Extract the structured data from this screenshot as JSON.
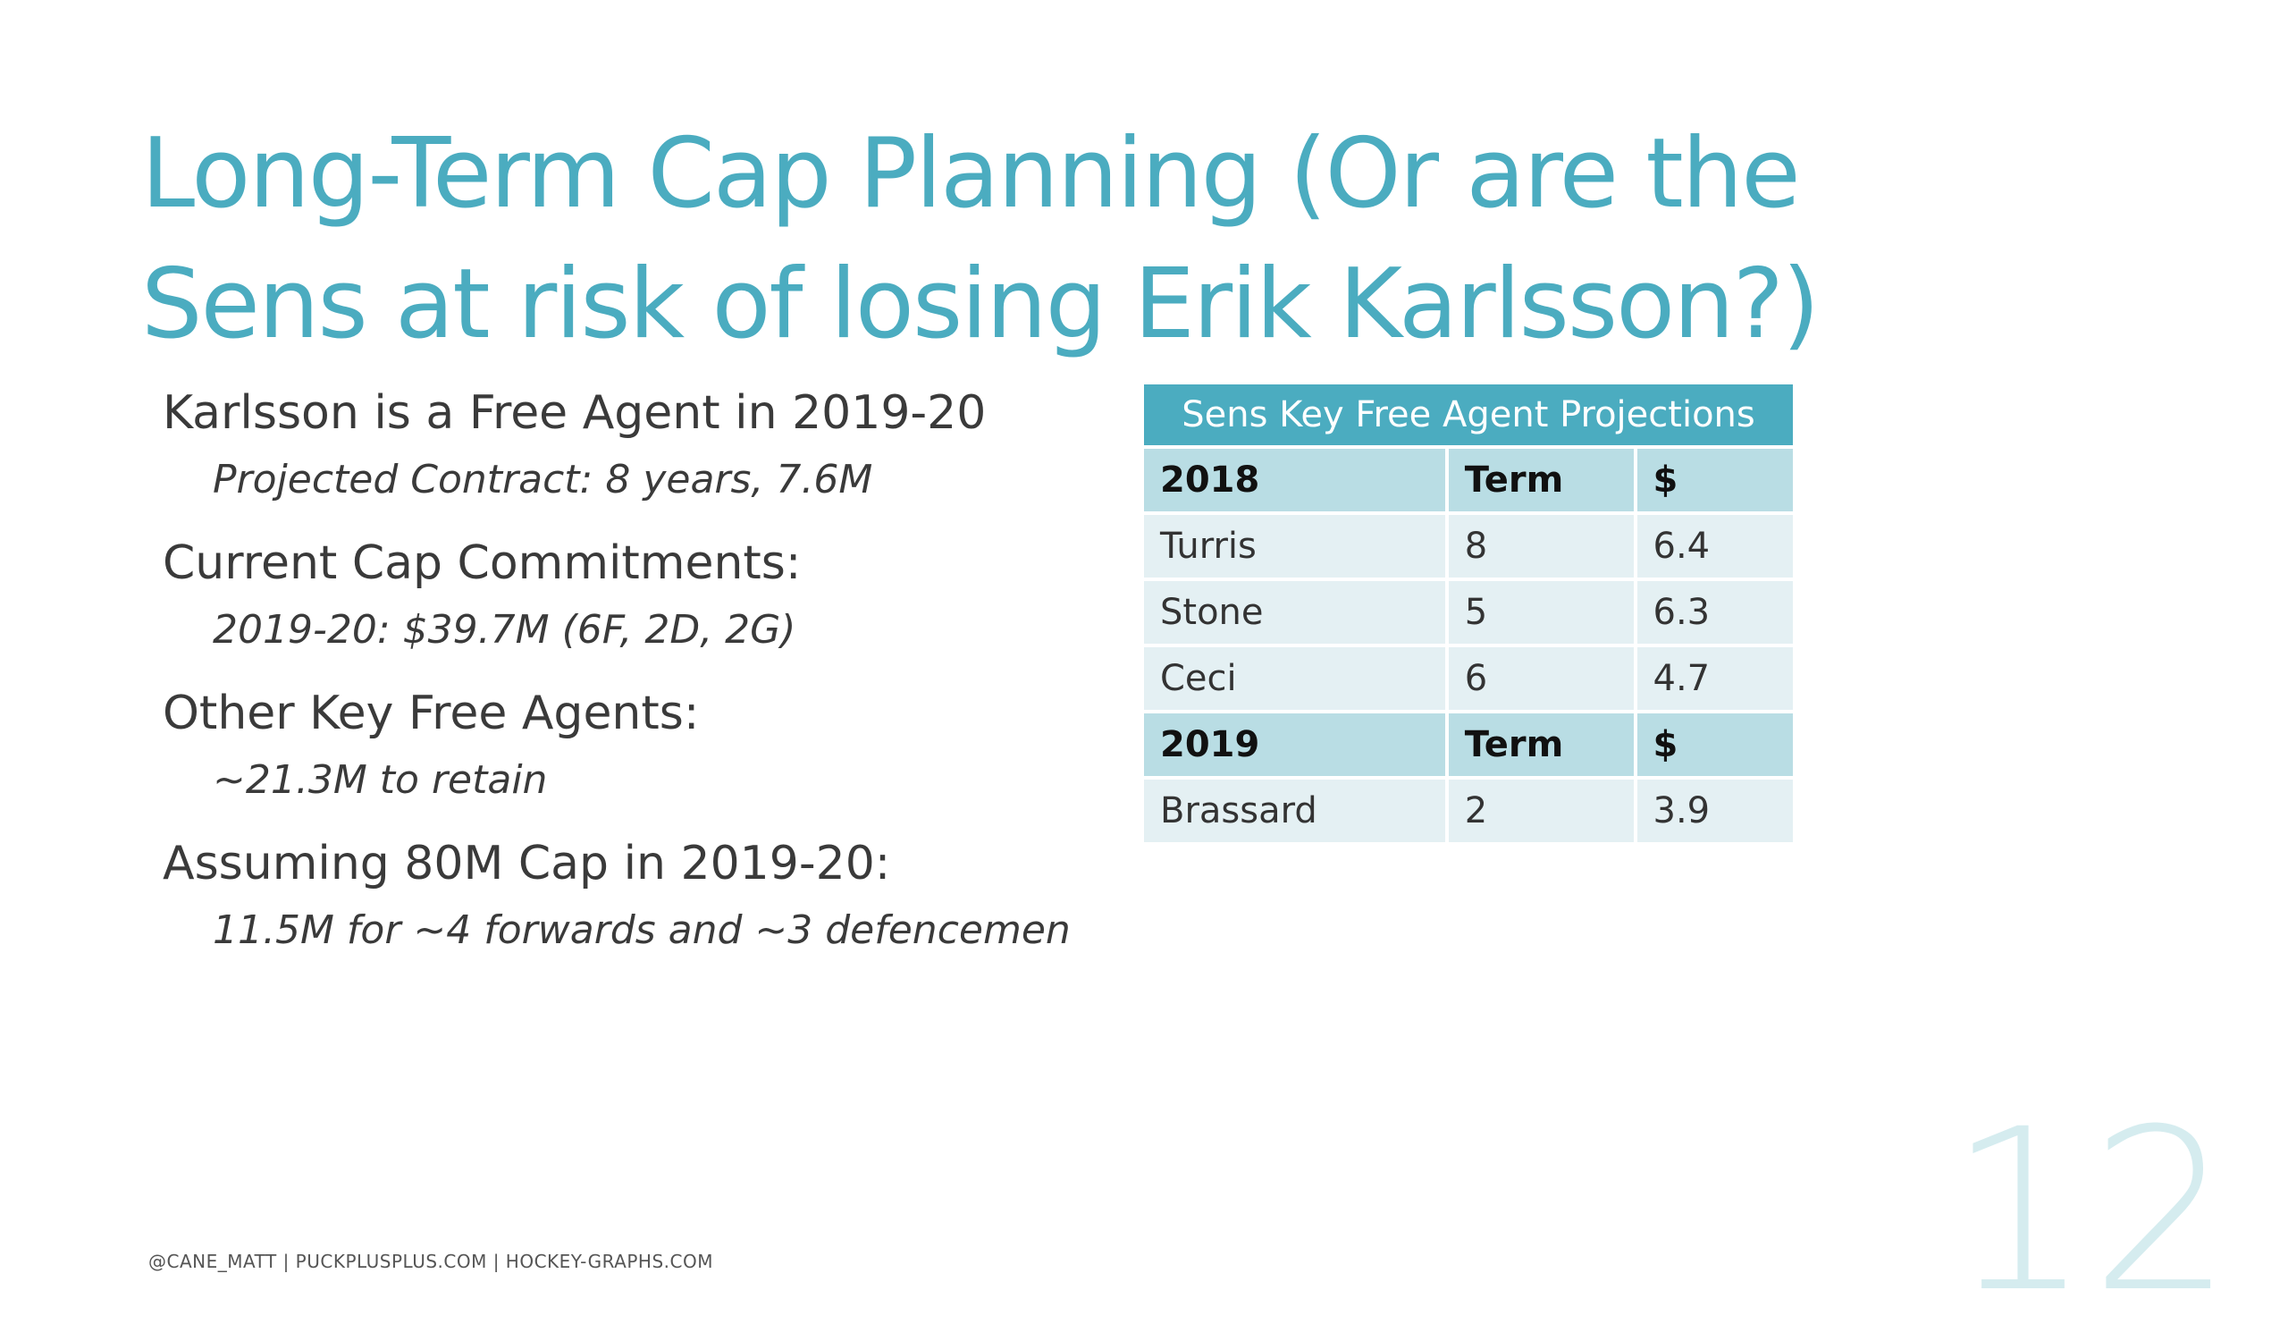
{
  "slide": {
    "title": "Long-Term Cap Planning (Or are the Sens at risk of losing Erik Karlsson?)",
    "bullets": [
      {
        "main": "Karlsson is a Free Agent in 2019-20",
        "sub": "Projected Contract: 8 years, 7.6M"
      },
      {
        "main": "Current Cap Commitments:",
        "sub": "2019-20: $39.7M (6F, 2D, 2G)"
      },
      {
        "main": "Other Key Free Agents:",
        "sub": "~21.3M to retain"
      },
      {
        "main": "Assuming 80M Cap in 2019-20:",
        "sub": "11.5M for ~4 forwards and ~3 defencemen"
      }
    ],
    "table": {
      "title": "Sens Key Free Agent Projections",
      "groups": [
        {
          "header": [
            "2018",
            "Term",
            "$"
          ],
          "rows": [
            [
              "Turris",
              "8",
              "6.4"
            ],
            [
              "Stone",
              "5",
              "6.3"
            ],
            [
              "Ceci",
              "6",
              "4.7"
            ]
          ]
        },
        {
          "header": [
            "2019",
            "Term",
            "$"
          ],
          "rows": [
            [
              "Brassard",
              "2",
              "3.9"
            ]
          ]
        }
      ]
    },
    "footer": "@CANE_MATT | PUCKPLUSPLUS.COM | HOCKEY-GRAPHS.COM",
    "page_number": "12",
    "colors": {
      "accent": "#4bacc0",
      "table_header": "#b9dde4",
      "table_row": "#e4f0f3",
      "page_number": "#d5ecef"
    }
  }
}
